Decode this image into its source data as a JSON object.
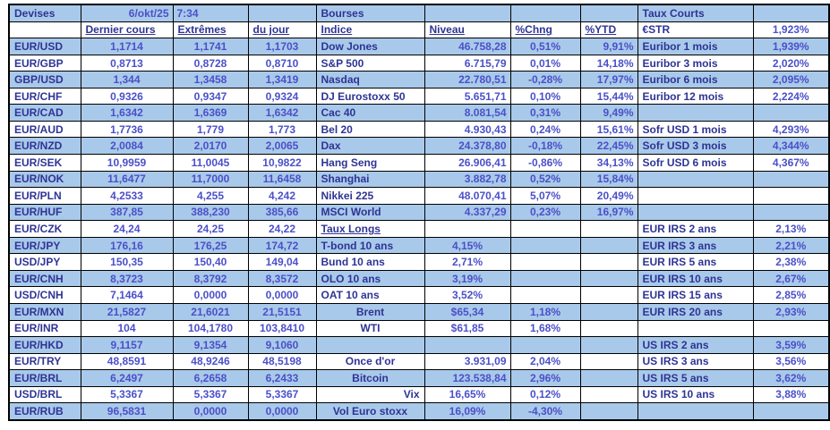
{
  "sheet": {
    "colors": {
      "row_blue": "#A9C9EA",
      "label_text": "#2E3494",
      "value_text": "#4B50C8",
      "border": "#000000"
    },
    "devises": {
      "title": "Devises",
      "date": "6/okt/25",
      "time": "7:34",
      "headers": [
        "Dernier cours",
        "Extrêmes",
        "du jour"
      ],
      "rows": [
        [
          "EUR/USD",
          "1,1714",
          "1,1741",
          "1,1703"
        ],
        [
          "EUR/GBP",
          "0,8713",
          "0,8728",
          "0,8710"
        ],
        [
          "GBP/USD",
          "1,344",
          "1,3458",
          "1,3419"
        ],
        [
          "EUR/CHF",
          "0,9326",
          "0,9347",
          "0,9324"
        ],
        [
          "EUR/CAD",
          "1,6342",
          "1,6369",
          "1,6342"
        ],
        [
          "EUR/AUD",
          "1,7736",
          "1,779",
          "1,773"
        ],
        [
          "EUR/NZD",
          "2,0084",
          "2,0170",
          "2,0065"
        ],
        [
          "EUR/SEK",
          "10,9959",
          "11,0045",
          "10,9822"
        ],
        [
          "EUR/NOK",
          "11,6477",
          "11,7000",
          "11,6458"
        ],
        [
          "EUR/PLN",
          "4,2533",
          "4,255",
          "4,242"
        ],
        [
          "EUR/HUF",
          "387,85",
          "388,230",
          "385,66"
        ],
        [
          "EUR/CZK",
          "24,24",
          "24,25",
          "24,22"
        ],
        [
          "EUR/JPY",
          "176,16",
          "176,25",
          "174,72"
        ],
        [
          "USD/JPY",
          "150,35",
          "150,40",
          "149,04"
        ],
        [
          "EUR/CNH",
          "8,3723",
          "8,3792",
          "8,3572"
        ],
        [
          "USD/CNH",
          "7,1464",
          "0,0000",
          "0,0000"
        ],
        [
          "EUR/MXN",
          "21,5827",
          "21,6021",
          "21,5151"
        ],
        [
          "EUR/INR",
          "104",
          "104,1780",
          "103,8410"
        ],
        [
          "EUR/HKD",
          "9,1157",
          "9,1354",
          "9,1060"
        ],
        [
          "EUR/TRY",
          "48,8591",
          "48,9246",
          "48,5198"
        ],
        [
          "EUR/BRL",
          "6,2497",
          "6,2658",
          "6,2433"
        ],
        [
          "USD/BRL",
          "5,3367",
          "5,3367",
          "5,3367"
        ],
        [
          "EUR/RUB",
          "96,5831",
          "0,0000",
          "0,0000"
        ]
      ]
    },
    "bourses": {
      "title": "Bourses",
      "headers": [
        "Indice",
        "Niveau",
        "%Chng",
        "%YTD"
      ],
      "indices": [
        [
          "Dow Jones",
          "46.758,28",
          "0,51%",
          "9,91%"
        ],
        [
          "S&P 500",
          "6.715,79",
          "0,01%",
          "14,18%"
        ],
        [
          "Nasdaq",
          "22.780,51",
          "-0,28%",
          "17,97%"
        ],
        [
          "DJ Eurostoxx 50",
          "5.651,71",
          "0,10%",
          "15,44%"
        ],
        [
          "Cac 40",
          "8.081,54",
          "0,31%",
          "9,49%"
        ],
        [
          "Bel 20",
          "4.930,43",
          "0,24%",
          "15,61%"
        ],
        [
          "Dax",
          "24.378,80",
          "-0,18%",
          "22,45%"
        ],
        [
          "Hang Seng",
          "26.906,41",
          "-0,86%",
          "34,13%"
        ],
        [
          "Shanghai",
          "3.882,78",
          "0,52%",
          "15,84%"
        ],
        [
          "Nikkei 225",
          "48.070,41",
          "5,07%",
          "20,49%"
        ],
        [
          "MSCI World",
          "4.337,29",
          "0,23%",
          "16,97%"
        ]
      ],
      "taux_longs": {
        "title": "Taux Longs",
        "rows": [
          [
            "T-bond 10 ans",
            "4,15%"
          ],
          [
            "Bund 10 ans",
            "2,71%"
          ],
          [
            "OLO 10 ans",
            "3,19%"
          ],
          [
            "OAT 10 ans",
            "3,52%"
          ]
        ]
      },
      "commodities": [
        [
          "Brent",
          "$65,34",
          "1,18%"
        ],
        [
          "WTI",
          "$61,85",
          "1,68%"
        ]
      ],
      "others": [
        [
          "Once d'or",
          "3.931,09",
          "2,04%"
        ],
        [
          "Bitcoin",
          "123.538,84",
          "2,96%"
        ],
        [
          "Vix",
          "16,65%",
          "0,12%"
        ],
        [
          "Vol Euro stoxx",
          "16,09%",
          "-4,30%"
        ]
      ]
    },
    "taux_courts": {
      "title": "Taux Courts",
      "rows": [
        [
          "€STR",
          "1,923%"
        ],
        [
          "Euribor 1 mois",
          "1,939%"
        ],
        [
          "Euribor 3 mois",
          "2,020%"
        ],
        [
          "Euribor 6 mois",
          "2,095%"
        ],
        [
          "Euribor 12 mois",
          "2,224%"
        ],
        [
          "Sofr USD 1 mois",
          "4,293%"
        ],
        [
          "Sofr USD 3 mois",
          "4,344%"
        ],
        [
          "Sofr USD 6 mois",
          "4,367%"
        ],
        [
          "EUR IRS 2 ans",
          "2,13%"
        ],
        [
          "EUR IRS 3 ans",
          "2,21%"
        ],
        [
          "EUR IRS 5 ans",
          "2,38%"
        ],
        [
          "EUR IRS 10 ans",
          "2,67%"
        ],
        [
          "EUR IRS 15 ans",
          "2,85%"
        ],
        [
          "EUR IRS 20 ans",
          "2,93%"
        ],
        [
          "US IRS 2 ans",
          "3,59%"
        ],
        [
          "US IRS 3 ans",
          "3,56%"
        ],
        [
          "US IRS 5 ans",
          "3,62%"
        ],
        [
          "US IRS 10 ans",
          "3,88%"
        ]
      ]
    }
  }
}
